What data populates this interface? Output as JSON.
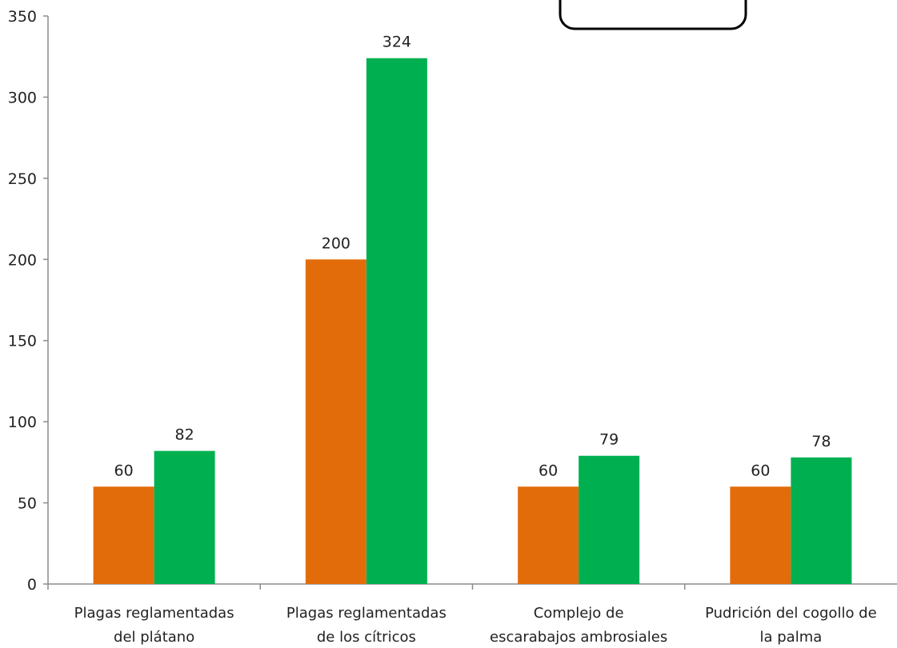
{
  "chart_data": {
    "type": "bar",
    "categories": [
      [
        "Plagas reglamentadas",
        "del plátano"
      ],
      [
        "Plagas reglamentadas",
        "de los cítricos"
      ],
      [
        "Complejo de",
        "escarabajos ambrosiales"
      ],
      [
        "Pudrición del cogollo de",
        "la palma"
      ]
    ],
    "series": [
      {
        "values": [
          60,
          200,
          60,
          60
        ],
        "color": "#e36c0a"
      },
      {
        "values": [
          82,
          324,
          79,
          78
        ],
        "color": "#00b050"
      }
    ],
    "ylim": [
      0,
      350
    ],
    "yticks": [
      0,
      50,
      100,
      150,
      200,
      250,
      300,
      350
    ],
    "ytick_labels": [
      "0",
      "50",
      "100",
      "150",
      "200",
      "250",
      "300",
      "350"
    ],
    "data_labels": true,
    "grid": false,
    "legend": "top-right (partially visible, box only)"
  }
}
